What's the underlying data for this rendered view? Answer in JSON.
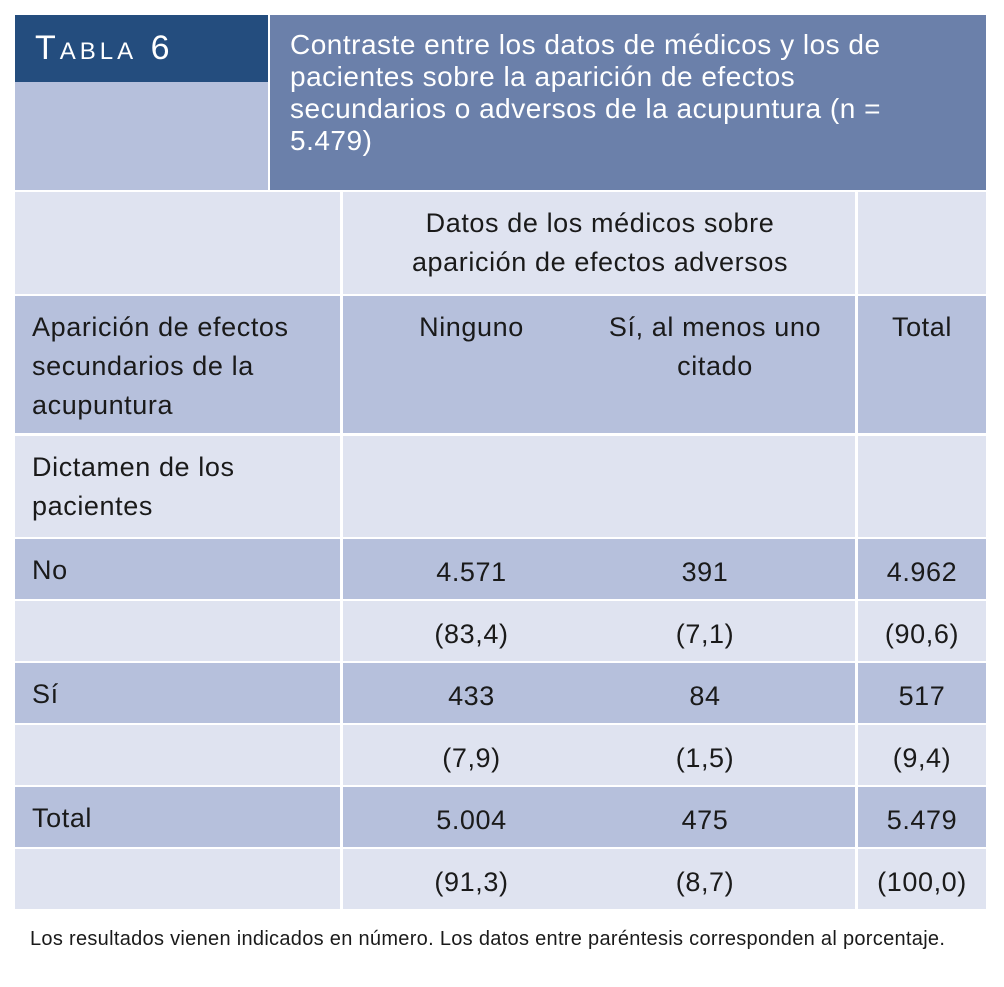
{
  "header": {
    "label": "Tabla 6",
    "title": "Contraste entre los datos de médicos y los de pacientes sobre la aparición de efectos secundarios o adversos de la acupuntura (n = 5.479)"
  },
  "table": {
    "group_header": "Datos de los médicos sobre aparición de efectos adversos",
    "columns": [
      "Aparición de efectos secundarios de la acupuntura",
      "Ninguno",
      "Sí, al menos uno citado",
      "Total"
    ],
    "section": "Dictamen de los pacientes",
    "rows": [
      {
        "label": "No",
        "values": [
          "4.571",
          "391",
          "4.962"
        ]
      },
      {
        "values": [
          "(83,4)",
          "(7,1)",
          "(90,6)"
        ]
      },
      {
        "label": "Sí",
        "values": [
          "433",
          "84",
          "517"
        ]
      },
      {
        "values": [
          "(7,9)",
          "(1,5)",
          "(9,4)"
        ]
      },
      {
        "label": "Total",
        "values": [
          "5.004",
          "475",
          "5.479"
        ]
      },
      {
        "values": [
          "(91,3)",
          "(8,7)",
          "(100,0)"
        ]
      }
    ]
  },
  "footnote": "Los resultados vienen indicados en número. Los datos entre paréntesis corresponden al porcentaje."
}
